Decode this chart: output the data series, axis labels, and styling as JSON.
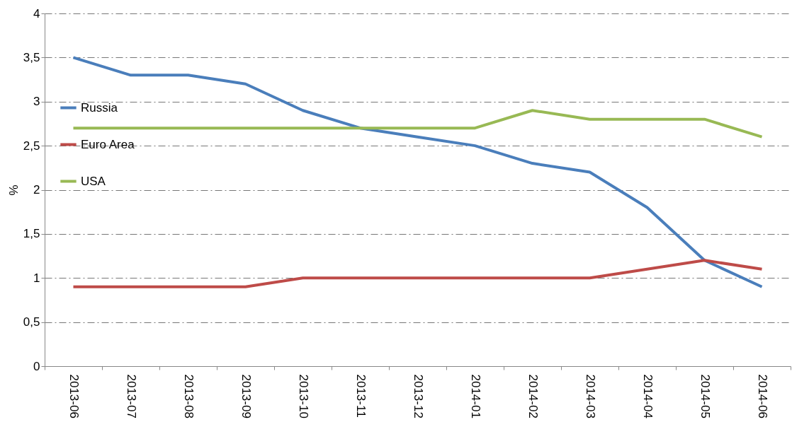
{
  "chart_data": {
    "type": "line",
    "ylabel": "%",
    "categories": [
      "2013-06",
      "2013-07",
      "2013-08",
      "2013-09",
      "2013-10",
      "2013-11",
      "2013-12",
      "2014-01",
      "2014-02",
      "2014-03",
      "2014-04",
      "2014-05",
      "2014-06"
    ],
    "series": [
      {
        "name": "Russia",
        "color": "#4a7ebb",
        "values": [
          3.5,
          3.3,
          3.3,
          3.2,
          2.9,
          2.7,
          2.6,
          2.5,
          2.3,
          2.2,
          1.8,
          1.2,
          0.9
        ]
      },
      {
        "name": "Euro Area",
        "color": "#be4b48",
        "values": [
          0.9,
          0.9,
          0.9,
          0.9,
          1.0,
          1.0,
          1.0,
          1.0,
          1.0,
          1.0,
          1.1,
          1.2,
          1.1
        ]
      },
      {
        "name": "USA",
        "color": "#98b954",
        "values": [
          2.7,
          2.7,
          2.7,
          2.7,
          2.7,
          2.7,
          2.7,
          2.7,
          2.9,
          2.8,
          2.8,
          2.8,
          2.6
        ]
      }
    ],
    "ylim": [
      0,
      4
    ],
    "yticks": [
      0,
      {
        "value": 0.5,
        "label": "0,5"
      },
      1,
      {
        "value": 1.5,
        "label": "1,5"
      },
      2,
      {
        "value": 2.5,
        "label": "2,5"
      },
      3,
      {
        "value": 3.5,
        "label": "3,5"
      },
      4
    ],
    "grid": "y",
    "legend": "left"
  }
}
